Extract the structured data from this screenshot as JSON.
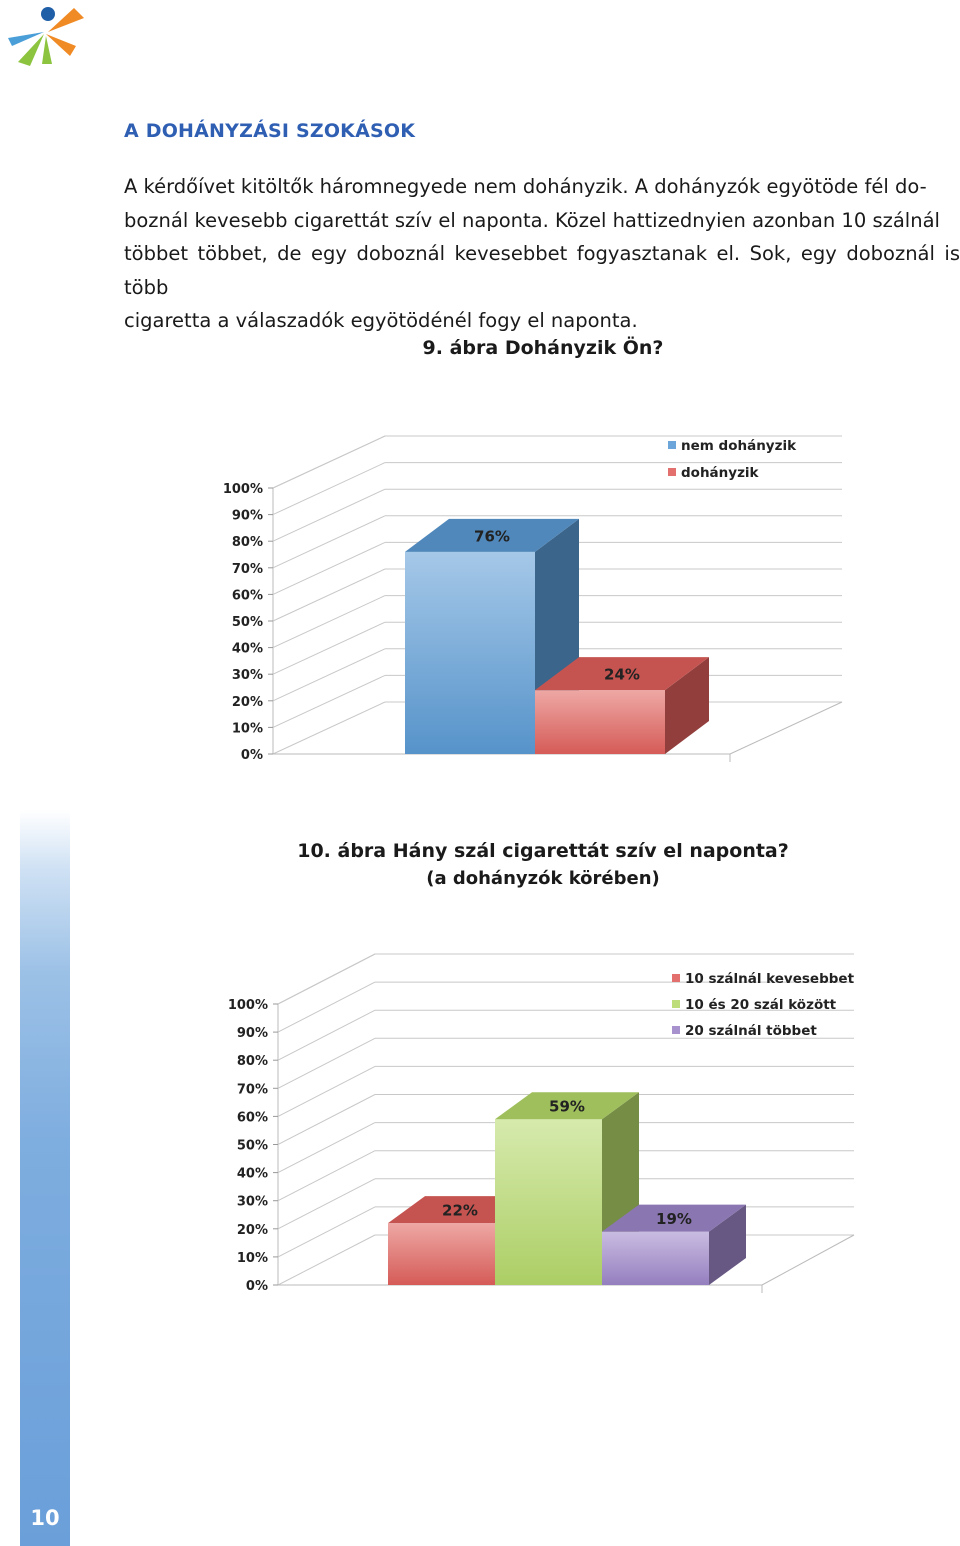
{
  "section_title": "A DOHÁNYZÁSI SZOKÁSOK",
  "paragraph": "A kérdőívet kitöltők háromnegyede nem dohányzik. A dohányzók egyötöde fél dobozonál kevesebb cigarettát szív el naponta. Közel hattizednyien azonban 10 szálnál többet többet, de egy doboznál kevesebbet fogyasztanak el. Sok, egy doboznál is több cigaretta a válaszadók egyötödénél fogy el naponta.",
  "paragraph_lines": [
    "A kérdőívet kitöltők háromnegyede nem dohányzik. A dohányzók  egyötöde fél do-",
    "boznál kevesebb cigarettát szív el naponta. Közel hattizednyien azonban 10 szálnál",
    "többet többet, de egy doboznál kevesebbet fogyasztanak el. Sok, egy doboznál is több",
    "cigaretta a válaszadók egyötödénél fogy el naponta."
  ],
  "figure1": {
    "caption": "9. ábra Dohányzik Ön?"
  },
  "figure2": {
    "caption": "10. ábra Hány szál cigarettát szív el naponta?",
    "subcaption": "(a dohányzók körében)"
  },
  "page_number": "10",
  "colors": {
    "title": "#2f5fb3",
    "sidebar": "#6a9fd9"
  },
  "chart_data": [
    {
      "type": "bar",
      "title": "9. ábra Dohányzik Ön?",
      "categories": [
        "nem dohányzik",
        "dohányzik"
      ],
      "values": [
        76,
        24
      ],
      "labels": [
        "76%",
        "24%"
      ],
      "series_colors": [
        "#5b9bd5",
        "#e0605c"
      ],
      "ylim": [
        0,
        100
      ],
      "yticks": [
        "0%",
        "10%",
        "20%",
        "30%",
        "40%",
        "50%",
        "60%",
        "70%",
        "80%",
        "90%",
        "100%"
      ],
      "legend": [
        "nem dohányzik",
        "dohányzik"
      ],
      "legend_position": "top-right",
      "style": "3d"
    },
    {
      "type": "bar",
      "title": "10. ábra Hány szál cigarettát szív el naponta?",
      "subtitle": "(a dohányzók körében)",
      "categories": [
        "10 szálnál kevesebbet",
        "10 és 20 szál között",
        "20 szálnál többet"
      ],
      "values": [
        22,
        59,
        19
      ],
      "labels": [
        "22%",
        "59%",
        "19%"
      ],
      "series_colors": [
        "#e0605c",
        "#b5d96a",
        "#9d86c9"
      ],
      "ylim": [
        0,
        100
      ],
      "yticks": [
        "0%",
        "10%",
        "20%",
        "30%",
        "40%",
        "50%",
        "60%",
        "70%",
        "80%",
        "90%",
        "100%"
      ],
      "legend": [
        "10 szálnál kevesebbet",
        "10 és 20 szál között",
        "20 szálnál többet"
      ],
      "legend_position": "top-right",
      "style": "3d"
    }
  ]
}
